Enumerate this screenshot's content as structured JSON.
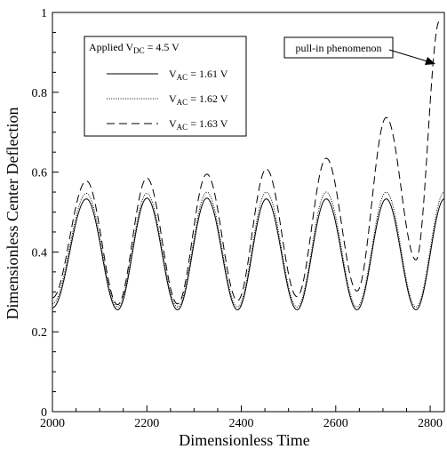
{
  "chart_data": {
    "type": "line",
    "xlabel": "Dimensionless Time",
    "ylabel": "Dimensionless Center Deflection",
    "xlim": [
      2000,
      2830
    ],
    "ylim": [
      0,
      1
    ],
    "x_ticks": [
      "2000",
      "2200",
      "2400",
      "2600",
      "2800"
    ],
    "y_ticks": [
      "0",
      "0.2",
      "0.4",
      "0.6",
      "0.8",
      "1"
    ],
    "grid": false,
    "legend": {
      "placement": "top-left",
      "title_main": "Applied V",
      "title_sub": "DC",
      "title_rest": " = 4.5 V",
      "entries": [
        {
          "main": "V",
          "sub": "AC",
          "rest": " = 1.61 V",
          "style": "solid"
        },
        {
          "main": "V",
          "sub": "AC",
          "rest": " = 1.62 V",
          "style": "dotted"
        },
        {
          "main": "V",
          "sub": "AC",
          "rest": " = 1.63 V",
          "style": "dashed"
        }
      ]
    },
    "annotation": {
      "text": "pull-in phenomenon",
      "points_to": [
        2820,
        0.97
      ]
    },
    "series": [
      {
        "name": "VAC = 1.61 V",
        "style": "solid",
        "description_points": [
          [
            2000,
            0.26
          ],
          [
            2072,
            0.533
          ],
          [
            2138,
            0.255
          ],
          [
            2200,
            0.535
          ],
          [
            2265,
            0.255
          ],
          [
            2327,
            0.535
          ],
          [
            2392,
            0.255
          ],
          [
            2453,
            0.533
          ],
          [
            2518,
            0.255
          ],
          [
            2580,
            0.533
          ],
          [
            2645,
            0.255
          ],
          [
            2707,
            0.533
          ],
          [
            2770,
            0.255
          ],
          [
            2830,
            0.533
          ]
        ]
      },
      {
        "name": "VAC = 1.62 V",
        "style": "dotted",
        "description_points": [
          [
            2000,
            0.27
          ],
          [
            2072,
            0.547
          ],
          [
            2138,
            0.262
          ],
          [
            2200,
            0.547
          ],
          [
            2265,
            0.262
          ],
          [
            2327,
            0.55
          ],
          [
            2392,
            0.262
          ],
          [
            2453,
            0.55
          ],
          [
            2518,
            0.262
          ],
          [
            2580,
            0.55
          ],
          [
            2645,
            0.262
          ],
          [
            2707,
            0.55
          ],
          [
            2770,
            0.262
          ],
          [
            2830,
            0.55
          ]
        ]
      },
      {
        "name": "VAC = 1.63 V",
        "style": "dashed",
        "description_points": [
          [
            2000,
            0.285
          ],
          [
            2072,
            0.578
          ],
          [
            2138,
            0.268
          ],
          [
            2200,
            0.585
          ],
          [
            2265,
            0.27
          ],
          [
            2327,
            0.595
          ],
          [
            2392,
            0.278
          ],
          [
            2453,
            0.608
          ],
          [
            2518,
            0.288
          ],
          [
            2580,
            0.635
          ],
          [
            2645,
            0.302
          ],
          [
            2707,
            0.737
          ],
          [
            2770,
            0.38
          ],
          [
            2820,
            0.98
          ]
        ]
      }
    ]
  }
}
